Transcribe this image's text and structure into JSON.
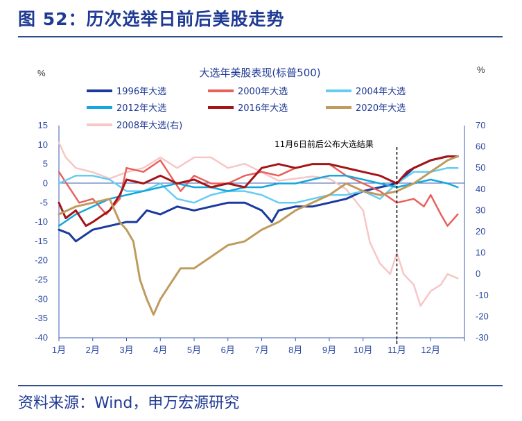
{
  "figure": {
    "title": "图 52：历次选举日前后美股走势",
    "source": "资料来源：Wind，申万宏源研究"
  },
  "chart_data": {
    "type": "line",
    "title": "大选年美股表现(标普500)",
    "left_unit": "%",
    "right_unit": "%",
    "annotation": "11月6日前后公布大选结果",
    "categories": [
      "1月",
      "2月",
      "3月",
      "4月",
      "5月",
      "6月",
      "7月",
      "8月",
      "9月",
      "10月",
      "11月",
      "12月"
    ],
    "x_range": [
      1,
      13
    ],
    "marker_x": 11,
    "ylim_left": [
      -40,
      15
    ],
    "ylim_right": [
      -30,
      70
    ],
    "left_ticks": [
      15,
      10,
      5,
      0,
      -5,
      -10,
      -15,
      -20,
      -25,
      -30,
      -35,
      -40
    ],
    "right_ticks": [
      70,
      60,
      50,
      40,
      30,
      20,
      10,
      0,
      -10,
      -20,
      -30
    ],
    "grid": false,
    "legend": "top",
    "series": [
      {
        "name": "1996年大选",
        "axis": "left",
        "color": "#1a3a9e",
        "width": 3,
        "x": [
          1,
          1.3,
          1.5,
          2,
          2.5,
          3,
          3.3,
          3.6,
          4,
          4.5,
          5,
          5.5,
          6,
          6.5,
          7,
          7.3,
          7.5,
          8,
          8.5,
          9,
          9.5,
          10,
          10.5,
          11,
          11.5,
          12,
          12.5,
          12.8
        ],
        "y": [
          -12,
          -13,
          -15,
          -12,
          -11,
          -10,
          -10,
          -7,
          -8,
          -6,
          -7,
          -6,
          -5,
          -5,
          -7,
          -10,
          -7,
          -6,
          -6,
          -5,
          -4,
          -2,
          -1,
          0,
          4,
          6,
          7,
          7
        ]
      },
      {
        "name": "2000年大选",
        "axis": "left",
        "color": "#e8615d",
        "width": 2.5,
        "x": [
          1,
          1.3,
          1.6,
          2,
          2.4,
          2.8,
          3,
          3.5,
          4,
          4.3,
          4.6,
          5,
          5.5,
          6,
          6.5,
          7,
          7.5,
          8,
          8.5,
          9,
          9.5,
          10,
          10.5,
          11,
          11.5,
          11.8,
          12,
          12.3,
          12.5,
          12.8
        ],
        "y": [
          3,
          -1,
          -5,
          -4,
          -8,
          -4,
          4,
          3,
          6,
          2,
          -2,
          2,
          0,
          0,
          2,
          3,
          2,
          4,
          5,
          5,
          2,
          0,
          -2,
          -5,
          -4,
          -6,
          -3,
          -8,
          -11,
          -8
        ]
      },
      {
        "name": "2004年大选",
        "axis": "left",
        "color": "#66ccf2",
        "width": 2.5,
        "x": [
          1,
          1.5,
          2,
          2.5,
          3,
          3.5,
          4,
          4.5,
          5,
          5.5,
          6,
          6.5,
          7,
          7.5,
          8,
          8.5,
          9,
          9.5,
          10,
          10.5,
          11,
          11.5,
          12,
          12.5,
          12.8
        ],
        "y": [
          0,
          2,
          2,
          1,
          -2,
          -2,
          0,
          -4,
          -5,
          -3,
          -2,
          -2,
          -3,
          -5,
          -5,
          -4,
          -3,
          -3,
          -2,
          -4,
          0,
          3,
          3,
          4,
          4
        ]
      },
      {
        "name": "2012年大选",
        "axis": "left",
        "color": "#12a8dd",
        "width": 2.5,
        "x": [
          1,
          1.5,
          2,
          2.5,
          3,
          3.5,
          4,
          4.5,
          5,
          5.5,
          6,
          6.5,
          7,
          7.5,
          8,
          8.5,
          9,
          9.5,
          10,
          10.5,
          11,
          11.5,
          12,
          12.5,
          12.8
        ],
        "y": [
          -11,
          -8,
          -6,
          -4,
          -3,
          -2,
          -1,
          0,
          -1,
          -1,
          -2,
          -1,
          -1,
          0,
          0,
          1,
          2,
          2,
          1,
          0,
          -1,
          0,
          1,
          0,
          -1
        ]
      },
      {
        "name": "2016年大选",
        "axis": "left",
        "color": "#a51417",
        "width": 3,
        "x": [
          1,
          1.2,
          1.5,
          1.8,
          2,
          2.5,
          2.8,
          3,
          3.5,
          4,
          4.5,
          5,
          5.5,
          6,
          6.5,
          7,
          7.5,
          8,
          8.5,
          9,
          9.5,
          10,
          10.5,
          11,
          11.3,
          11.5,
          12,
          12.5,
          12.8
        ],
        "y": [
          -5,
          -9,
          -7,
          -11,
          -10,
          -7,
          -3,
          1,
          0,
          2,
          0,
          1,
          -1,
          0,
          -1,
          4,
          5,
          4,
          5,
          5,
          4,
          3,
          2,
          0,
          3,
          4,
          6,
          7,
          7
        ]
      },
      {
        "name": "2020年大选",
        "axis": "left",
        "color": "#bf9b5d",
        "width": 3,
        "x": [
          1,
          1.5,
          2,
          2.5,
          2.8,
          3,
          3.2,
          3.4,
          3.6,
          3.8,
          4,
          4.3,
          4.6,
          5,
          5.5,
          6,
          6.5,
          7,
          7.5,
          8,
          8.5,
          9,
          9.5,
          10,
          10.5,
          11,
          11.5,
          12,
          12.5,
          12.8
        ],
        "y": [
          -8,
          -6,
          -5,
          -4,
          -10,
          -12,
          -15,
          -25,
          -30,
          -34,
          -30,
          -26,
          -22,
          -22,
          -19,
          -16,
          -15,
          -12,
          -10,
          -7,
          -5,
          -3,
          0,
          -2,
          -3,
          -2,
          0,
          3,
          6,
          7
        ]
      },
      {
        "name": "2008年大选(右)",
        "axis": "right",
        "color": "#f7c6c6",
        "width": 2.5,
        "x": [
          1,
          1.2,
          1.5,
          2,
          2.5,
          3,
          3.5,
          4,
          4.5,
          5,
          5.5,
          6,
          6.5,
          7,
          7.5,
          8,
          8.5,
          9,
          9.5,
          10,
          10.2,
          10.5,
          10.8,
          11,
          11.2,
          11.5,
          11.7,
          12,
          12.3,
          12.5,
          12.8
        ],
        "y": [
          62,
          55,
          50,
          48,
          45,
          48,
          50,
          55,
          50,
          55,
          55,
          50,
          52,
          48,
          44,
          45,
          46,
          45,
          40,
          30,
          15,
          5,
          0,
          10,
          0,
          -5,
          -15,
          -8,
          -5,
          0,
          -2
        ]
      }
    ]
  }
}
